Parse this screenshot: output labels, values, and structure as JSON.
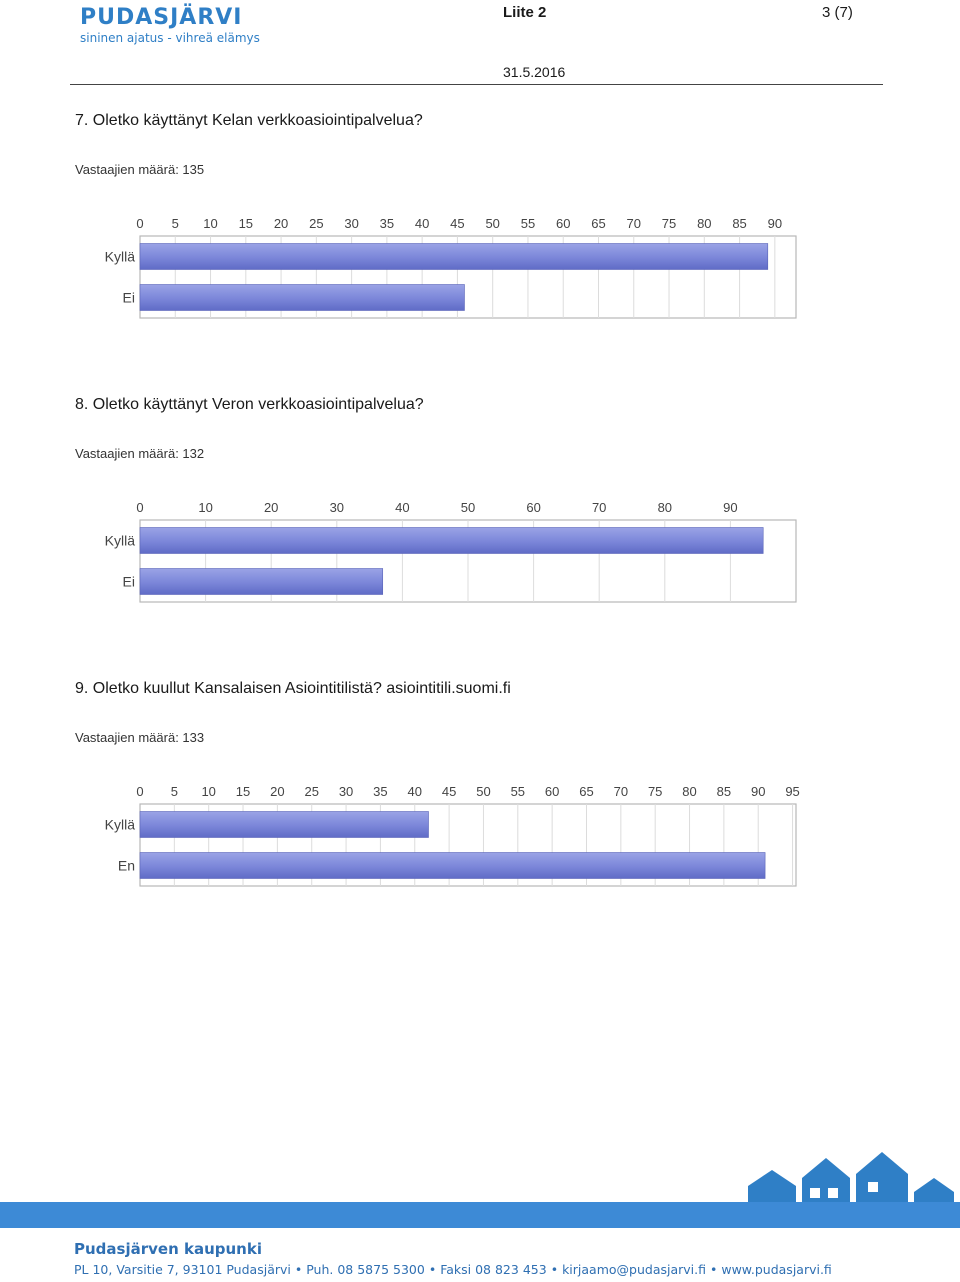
{
  "header": {
    "logo_name": "PUDASJÄRVI",
    "logo_slogan": "sininen ajatus - vihreä elämys",
    "attachment": "Liite 2",
    "page": "3 (7)",
    "date": "31.5.2016"
  },
  "questions": [
    {
      "title": "7. Oletko käyttänyt Kelan verkkoasiointipalvelua?",
      "count": "Vastaajien määrä: 135",
      "chart_data": {
        "type": "bar",
        "orientation": "horizontal",
        "categories": [
          "Kyllä",
          "Ei"
        ],
        "values": [
          89,
          46
        ],
        "xlim": [
          0,
          93
        ],
        "ticks": [
          0,
          5,
          10,
          15,
          20,
          25,
          30,
          35,
          40,
          45,
          50,
          55,
          60,
          65,
          70,
          75,
          80,
          85,
          90
        ],
        "grid": true
      }
    },
    {
      "title": "8. Oletko käyttänyt Veron verkkoasiointipalvelua?",
      "count": "Vastaajien määrä: 132",
      "chart_data": {
        "type": "bar",
        "orientation": "horizontal",
        "categories": [
          "Kyllä",
          "Ei"
        ],
        "values": [
          95,
          37
        ],
        "xlim": [
          0,
          100
        ],
        "ticks": [
          0,
          10,
          20,
          30,
          40,
          50,
          60,
          70,
          80,
          90
        ],
        "grid": true
      }
    },
    {
      "title": "9. Oletko kuullut Kansalaisen Asiointitilistä? asiointitili.suomi.fi",
      "count": "Vastaajien määrä: 133",
      "chart_data": {
        "type": "bar",
        "orientation": "horizontal",
        "categories": [
          "Kyllä",
          "En"
        ],
        "values": [
          42,
          91
        ],
        "xlim": [
          0,
          95.5
        ],
        "ticks": [
          0,
          5,
          10,
          15,
          20,
          25,
          30,
          35,
          40,
          45,
          50,
          55,
          60,
          65,
          70,
          75,
          80,
          85,
          90,
          95
        ],
        "grid": true
      }
    }
  ],
  "footer": {
    "org": "Pudasjärven kaupunki",
    "contact": [
      "PL 10, Varsitie 7, 93101 Pudasjärvi",
      "Puh. 08 5875 5300",
      "Faksi 08 823 453",
      "kirjaamo@pudasjarvi.fi",
      "www.pudasjarvi.fi"
    ]
  },
  "colors": {
    "bar": "#7b86d9",
    "brand": "#3d8ad6"
  }
}
